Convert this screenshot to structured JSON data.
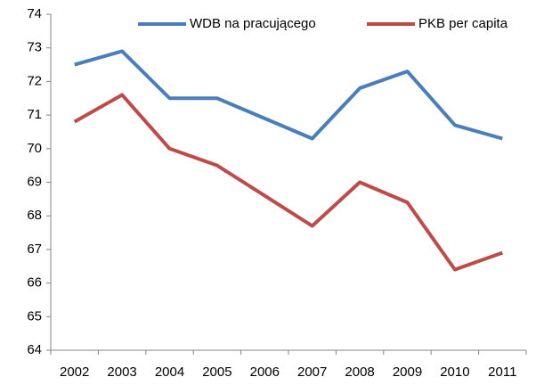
{
  "chart_data": {
    "type": "line",
    "categories": [
      "2002",
      "2003",
      "2004",
      "2005",
      "2006",
      "2007",
      "2008",
      "2009",
      "2010",
      "2011"
    ],
    "series": [
      {
        "name": "WDB na pracującego",
        "color": "#4a7ebb",
        "values": [
          72.5,
          72.9,
          71.5,
          71.5,
          70.9,
          70.3,
          71.8,
          72.3,
          70.7,
          70.3
        ]
      },
      {
        "name": "PKB per capita",
        "color": "#be4b48",
        "values": [
          70.8,
          71.6,
          70.0,
          69.5,
          68.6,
          67.7,
          69.0,
          68.4,
          66.4,
          66.9
        ]
      }
    ],
    "ylim": [
      64,
      74
    ],
    "yticks": [
      64,
      65,
      66,
      67,
      68,
      69,
      70,
      71,
      72,
      73,
      74
    ],
    "grid": false,
    "legend": "top-right"
  }
}
